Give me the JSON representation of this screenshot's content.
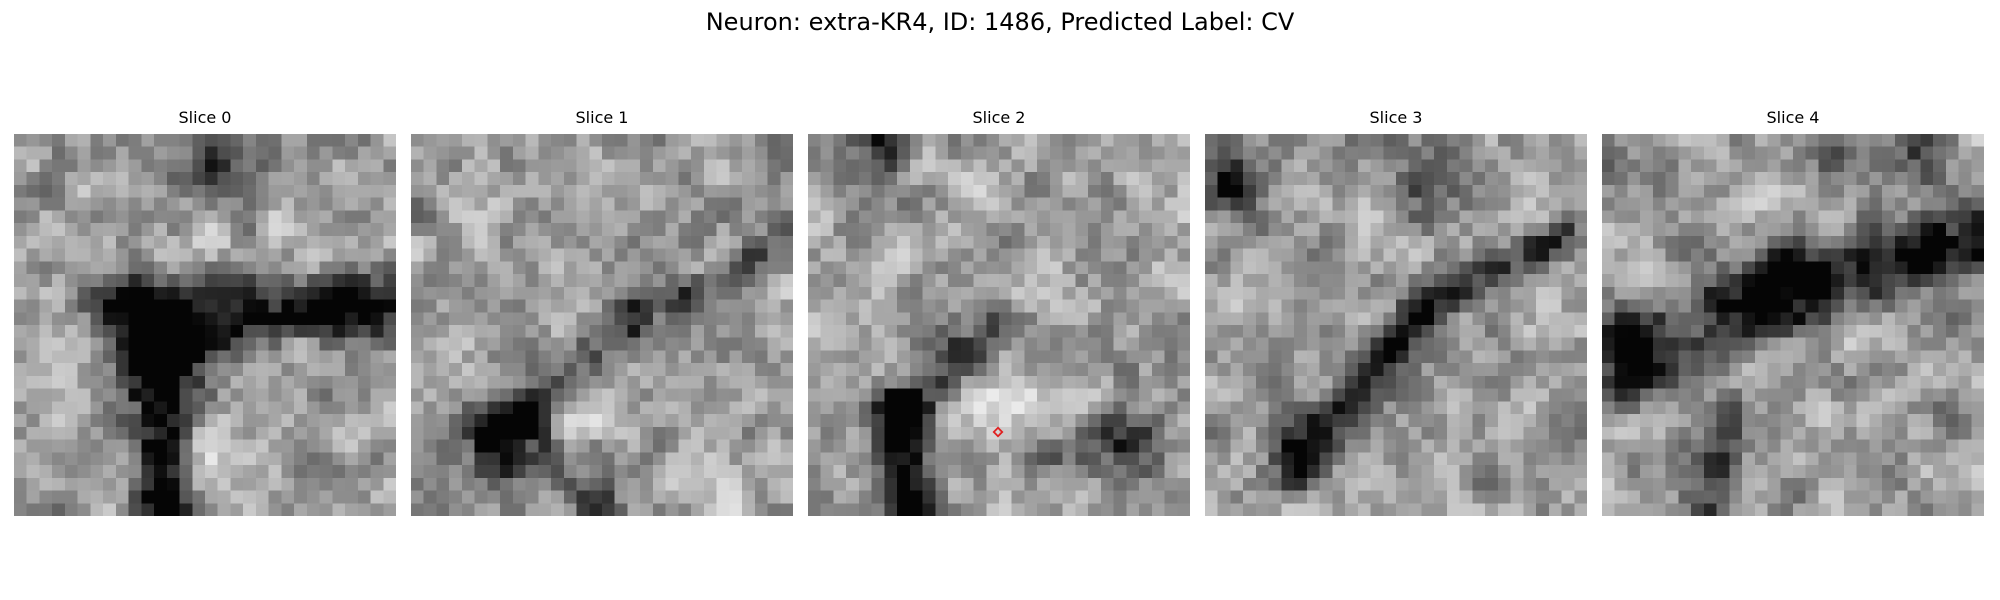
{
  "figure": {
    "title": "Neuron: extra-KR4, ID: 1486, Predicted Label: CV"
  },
  "panels": [
    {
      "title": "Slice 0",
      "grid": 30,
      "seed": 11,
      "features": [
        {
          "type": "band",
          "from": [
            8,
            13
          ],
          "to": [
            29,
            14
          ],
          "width": 1.8,
          "depth": 0.55
        },
        {
          "type": "band",
          "from": [
            11,
            16
          ],
          "to": [
            12,
            30
          ],
          "width": 1.6,
          "depth": 0.65
        },
        {
          "type": "blob",
          "at": [
            13,
            17
          ],
          "radius": 3.2,
          "depth": 0.45
        },
        {
          "type": "blob",
          "at": [
            16,
            2
          ],
          "radius": 2.6,
          "depth": 0.35
        },
        {
          "type": "blob",
          "at": [
            14,
            11
          ],
          "radius": 2.2,
          "depth": -0.25
        },
        {
          "type": "blob",
          "at": [
            15,
            25
          ],
          "radius": 2.0,
          "depth": -0.25
        },
        {
          "type": "blob",
          "at": [
            25,
            13
          ],
          "radius": 1.0,
          "depth": 0.5
        }
      ]
    },
    {
      "title": "Slice 1",
      "grid": 30,
      "seed": 23,
      "features": [
        {
          "type": "band",
          "from": [
            7,
            23
          ],
          "to": [
            17,
            15
          ],
          "width": 1.5,
          "depth": 0.35
        },
        {
          "type": "band",
          "from": [
            18,
            14
          ],
          "to": [
            29,
            9
          ],
          "width": 1.0,
          "depth": 0.25
        },
        {
          "type": "blob",
          "at": [
            8,
            24
          ],
          "radius": 2.4,
          "depth": 0.55
        },
        {
          "type": "blob",
          "at": [
            14,
            29
          ],
          "radius": 1.8,
          "depth": 0.4
        },
        {
          "type": "blob",
          "at": [
            12,
            21
          ],
          "radius": 2.5,
          "depth": -0.2
        }
      ]
    },
    {
      "title": "Slice 2",
      "grid": 30,
      "seed": 37,
      "features": [
        {
          "type": "band",
          "from": [
            8,
            30
          ],
          "to": [
            7,
            22
          ],
          "width": 1.2,
          "depth": 0.7
        },
        {
          "type": "band",
          "from": [
            7,
            22
          ],
          "to": [
            15,
            15
          ],
          "width": 1.4,
          "depth": 0.4
        },
        {
          "type": "blob",
          "at": [
            6,
            1
          ],
          "radius": 1.3,
          "depth": 0.5
        },
        {
          "type": "blob",
          "at": [
            25,
            24
          ],
          "radius": 2.0,
          "depth": 0.45
        },
        {
          "type": "blob",
          "at": [
            20,
            26
          ],
          "radius": 2.0,
          "depth": 0.25
        },
        {
          "type": "blob",
          "at": [
            15,
            20
          ],
          "radius": 2.5,
          "depth": -0.2
        }
      ],
      "marker": {
        "shape": "diamond",
        "color": "#e02020"
      }
    },
    {
      "title": "Slice 3",
      "grid": 30,
      "seed": 53,
      "features": [
        {
          "type": "band",
          "from": [
            7,
            27
          ],
          "to": [
            17,
            14
          ],
          "width": 1.2,
          "depth": 0.5
        },
        {
          "type": "band",
          "from": [
            17,
            14
          ],
          "to": [
            28,
            8
          ],
          "width": 1.0,
          "depth": 0.4
        },
        {
          "type": "blob",
          "at": [
            2,
            4
          ],
          "radius": 1.5,
          "depth": 0.55
        },
        {
          "type": "blob",
          "at": [
            18,
            4
          ],
          "radius": 1.8,
          "depth": 0.4
        },
        {
          "type": "blob",
          "at": [
            7,
            24
          ],
          "radius": 1.5,
          "depth": 0.45
        }
      ]
    },
    {
      "title": "Slice 4",
      "grid": 30,
      "seed": 71,
      "features": [
        {
          "type": "band",
          "from": [
            2,
            17
          ],
          "to": [
            15,
            12
          ],
          "width": 2.2,
          "depth": 0.45
        },
        {
          "type": "band",
          "from": [
            15,
            12
          ],
          "to": [
            30,
            8
          ],
          "width": 2.0,
          "depth": 0.5
        },
        {
          "type": "band",
          "from": [
            8,
            30
          ],
          "to": [
            10,
            22
          ],
          "width": 1.2,
          "depth": 0.4
        },
        {
          "type": "blob",
          "at": [
            25,
            1
          ],
          "radius": 1.8,
          "depth": 0.45
        },
        {
          "type": "blob",
          "at": [
            19,
            2
          ],
          "radius": 1.5,
          "depth": 0.3
        },
        {
          "type": "blob",
          "at": [
            3,
            18
          ],
          "radius": 2.2,
          "depth": 0.3
        }
      ]
    }
  ]
}
